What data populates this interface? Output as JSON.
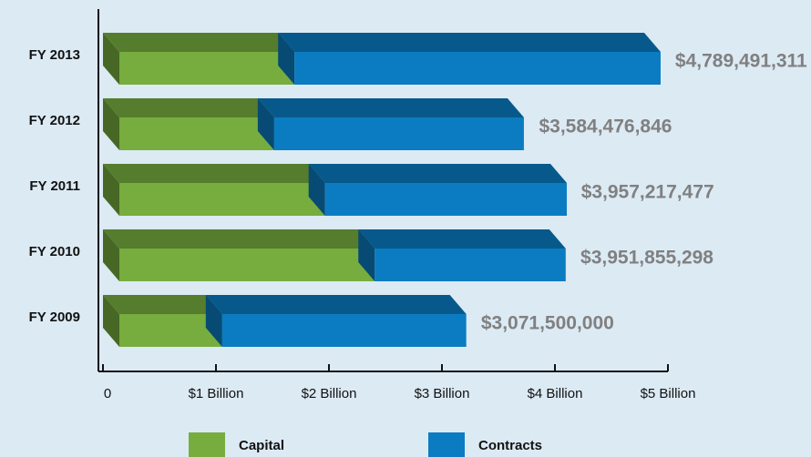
{
  "chart_data": {
    "type": "bar3d_stacked_horizontal",
    "categories": [
      "FY 2013",
      "FY 2012",
      "FY 2011",
      "FY 2010",
      "FY 2009"
    ],
    "series": [
      {
        "name": "Capital",
        "color": "#76ad3e",
        "values": [
          1550000000,
          1370000000,
          1820000000,
          2260000000,
          910000000
        ]
      },
      {
        "name": "Contracts",
        "color": "#0b7cc1",
        "values": [
          3240000000,
          2210000000,
          2140000000,
          1690000000,
          2160000000
        ]
      }
    ],
    "totals": [
      4789491311,
      3584476846,
      3957217477,
      3951855298,
      3071500000
    ],
    "total_labels": [
      "$4,789,491,311",
      "$3,584,476,846",
      "$3,957,217,477",
      "$3,951,855,298",
      "$3,071,500,000"
    ],
    "xlim": [
      0,
      5000000000
    ],
    "xticks": [
      0,
      {
        "value": 1000000000,
        "label": "$1 Billion"
      },
      {
        "value": 2000000000,
        "label": "$2 Billion"
      },
      {
        "value": 3000000000,
        "label": "$3 Billion"
      },
      {
        "value": 4000000000,
        "label": "$4 Billion"
      },
      {
        "value": 5000000000,
        "label": "$5 Billion"
      }
    ],
    "legend": "bottom"
  }
}
